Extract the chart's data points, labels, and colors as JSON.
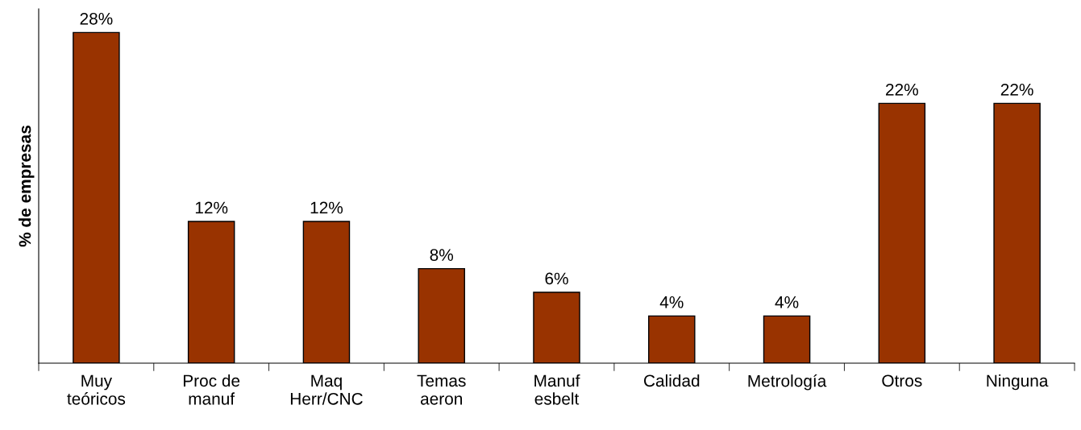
{
  "chart_data": {
    "type": "bar",
    "ylabel": "% de empresas",
    "categories": [
      "Muy\nteóricos",
      "Proc de\nmanuf",
      "Maq\nHerr/CNC",
      "Temas\naeron",
      "Manuf\nesbelt",
      "Calidad",
      "Metrología",
      "Otros",
      "Ninguna"
    ],
    "values": [
      28,
      12,
      12,
      8,
      6,
      4,
      4,
      22,
      22
    ],
    "value_labels": [
      "28%",
      "12%",
      "12%",
      "8%",
      "6%",
      "4%",
      "4%",
      "22%",
      "22%"
    ],
    "color": "#993300",
    "ylim": [
      0,
      30
    ],
    "tick_labels": "x",
    "grid": false,
    "legend": false
  }
}
